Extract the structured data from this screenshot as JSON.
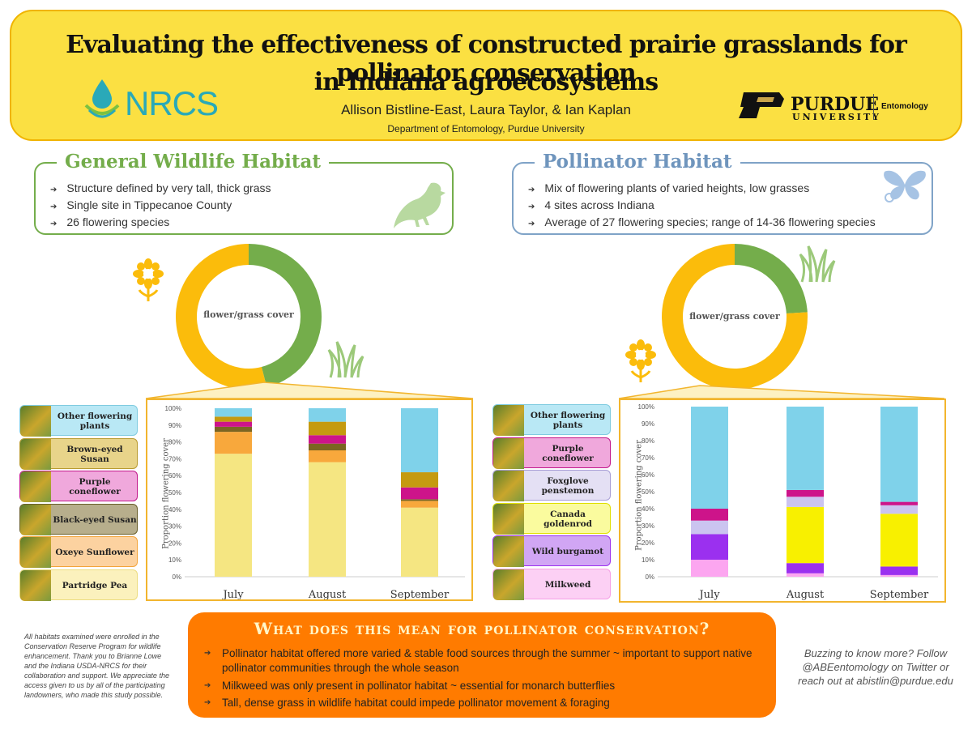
{
  "header": {
    "title_line1": "Evaluating the effectiveness of constructed prairie grasslands for  pollinator conservation",
    "title_line2": "in Indiana agroecosystems",
    "authors": "Allison Bistline-East, Laura Taylor, & Ian Kaplan",
    "department": "Department of Entomology, Purdue University",
    "nrcs_logo_text": "NRCS",
    "purdue_name": "PURDUE",
    "purdue_university": "UNIVERSITY",
    "purdue_dept": "Entomology"
  },
  "wildlife": {
    "title": "General Wildlife Habitat",
    "bullets": [
      "Structure defined by very tall, thick grass",
      "Single site in Tippecanoe County",
      "26 flowering species"
    ],
    "accent": "#74ad4b",
    "title_color": "#74ad4b"
  },
  "pollinator": {
    "title": "Pollinator Habitat",
    "bullets": [
      "Mix of flowering plants of varied heights, low grasses",
      "4 sites across Indiana",
      "Average of 27 flowering species; range of 14-36 flowering species"
    ],
    "accent": "#7fa3c7",
    "title_color": "#6f95bd"
  },
  "donut_label": "flower/grass cover",
  "legend_left": [
    {
      "label": "Other flowering plants",
      "color": "#b9e8f5",
      "border": "#7fcbe0"
    },
    {
      "label": "Brown-eyed Susan",
      "color": "#e8d48a",
      "border": "#b99b30"
    },
    {
      "label": "Purple coneflower",
      "color": "#f0a8dc",
      "border": "#c2178c"
    },
    {
      "label": "Black-eyed Susan",
      "color": "#b7ae8c",
      "border": "#6a5f2a"
    },
    {
      "label": "Oxeye Sunflower",
      "color": "#fcd2a0",
      "border": "#f3a43a"
    },
    {
      "label": "Partridge Pea",
      "color": "#fbf1bd",
      "border": "#ecdc80"
    }
  ],
  "legend_right": [
    {
      "label": "Other flowering plants",
      "color": "#b9e8f5",
      "border": "#7fcbe0"
    },
    {
      "label": "Purple coneflower",
      "color": "#f0a8dc",
      "border": "#c2178c"
    },
    {
      "label": "Foxglove penstemon",
      "color": "#e4e0f4",
      "border": "#a79ed6"
    },
    {
      "label": "Canada goldenrod",
      "color": "#fafb9e",
      "border": "#e0e000"
    },
    {
      "label": "Wild burgamot",
      "color": "#d1a6f4",
      "border": "#9b30ef"
    },
    {
      "label": "Milkweed",
      "color": "#fcd0f4",
      "border": "#f59fe6"
    }
  ],
  "chart_data": [
    {
      "type": "pie",
      "subtype": "donut",
      "title": "",
      "center_label": "flower/grass cover",
      "slices": [
        {
          "name": "grass",
          "value": 46,
          "color": "#74ad4b"
        },
        {
          "name": "flower",
          "value": 54,
          "color": "#fbbc0b"
        }
      ]
    },
    {
      "type": "bar",
      "stacked": true,
      "ylabel": "Proportion flowering cover",
      "yticks": [
        "0%",
        "10%",
        "20%",
        "30%",
        "40%",
        "50%",
        "60%",
        "70%",
        "80%",
        "90%",
        "100%"
      ],
      "ylim": [
        0,
        100
      ],
      "categories": [
        "July",
        "August",
        "September"
      ],
      "series": [
        {
          "name": "Partridge Pea",
          "color": "#f5e682",
          "values": [
            73,
            68,
            41
          ]
        },
        {
          "name": "Oxeye Sunflower",
          "color": "#f8a83c",
          "values": [
            13,
            7,
            4
          ]
        },
        {
          "name": "Black-eyed Susan",
          "color": "#7b6522",
          "values": [
            3,
            4,
            1
          ]
        },
        {
          "name": "Purple coneflower",
          "color": "#cd148a",
          "values": [
            3,
            5,
            7
          ]
        },
        {
          "name": "Brown-eyed Susan",
          "color": "#c59a10",
          "values": [
            3,
            8,
            9
          ]
        },
        {
          "name": "Other flowering plants",
          "color": "#7fd2ea",
          "values": [
            5,
            8,
            38
          ]
        }
      ]
    },
    {
      "type": "pie",
      "subtype": "donut",
      "title": "",
      "center_label": "flower/grass cover",
      "slices": [
        {
          "name": "grass",
          "value": 24,
          "color": "#74ad4b"
        },
        {
          "name": "flower",
          "value": 76,
          "color": "#fbbc0b"
        }
      ]
    },
    {
      "type": "bar",
      "stacked": true,
      "ylabel": "Proportion flowering cover",
      "yticks": [
        "0%",
        "10%",
        "20%",
        "30%",
        "40%",
        "50%",
        "60%",
        "70%",
        "80%",
        "90%",
        "100%"
      ],
      "ylim": [
        0,
        100
      ],
      "categories": [
        "July",
        "August",
        "September"
      ],
      "series": [
        {
          "name": "Milkweed",
          "color": "#fca6f0",
          "values": [
            10,
            2,
            1
          ]
        },
        {
          "name": "Wild burgamot",
          "color": "#9b30ef",
          "values": [
            15,
            6,
            5
          ]
        },
        {
          "name": "Canada goldenrod",
          "color": "#f8f000",
          "values": [
            0,
            33,
            31
          ]
        },
        {
          "name": "Foxglove penstemon",
          "color": "#cbc4f0",
          "values": [
            8,
            6,
            5
          ]
        },
        {
          "name": "Purple coneflower",
          "color": "#cd148a",
          "values": [
            7,
            4,
            2
          ]
        },
        {
          "name": "Other flowering plants",
          "color": "#7fd2ea",
          "values": [
            60,
            49,
            56
          ]
        }
      ]
    }
  ],
  "conclusion": {
    "title": "What does this mean for pollinator conservation?",
    "bullets": [
      "Pollinator habitat offered more varied & stable food sources through the summer ~ important to support native pollinator communities through the whole season",
      "Milkweed was only present in pollinator habitat ~ essential for monarch butterflies",
      "Tall, dense grass in wildlife habitat could impede pollinator movement & foraging"
    ]
  },
  "footnote": "All habitats examined were enrolled in the Conservation Reserve Program for wildlife enhancement. Thank you to Brianne Lowe and the Indiana USDA-NRCS for their collaboration and support. We appreciate the access given to us by all of the participating landowners, who made this study possible.",
  "contact": "Buzzing to know more? Follow @ABEentomology on Twitter or reach out at abistlin@purdue.edu",
  "arrow_glyph": "➔",
  "icons": [
    "nrcs-water-drop-icon",
    "purdue-p-icon",
    "bird-icon",
    "butterfly-icon",
    "sunflower-icon",
    "grass-icon"
  ]
}
